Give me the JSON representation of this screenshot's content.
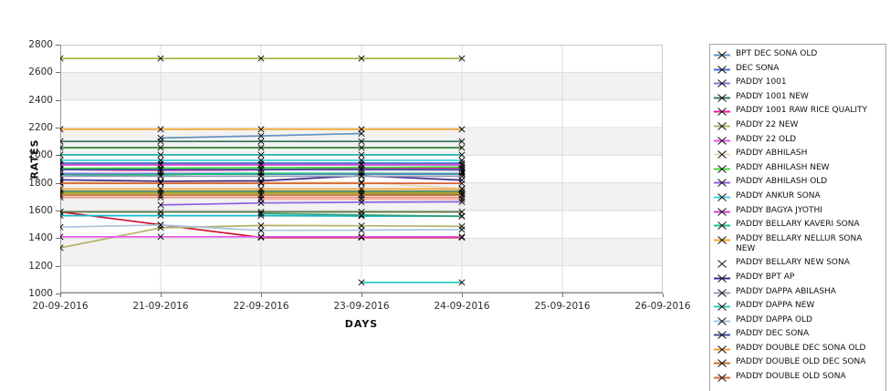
{
  "colors": {
    "band": "#f2f2f2",
    "grid": "#dcdcdc",
    "plot_border": "#c9c9c9",
    "axis_line": "#8a8a8a",
    "marker": "#000000",
    "legend_border": "#a6a6a6",
    "background": "#ffffff"
  },
  "axes": {
    "ylabel": "RATES",
    "xlabel": "DAYS"
  },
  "chart_data": {
    "type": "line",
    "title": "",
    "xlabel": "DAYS",
    "ylabel": "RATES",
    "x_categories": [
      "20-09-2016",
      "21-09-2016",
      "22-09-2016",
      "23-09-2016",
      "24-09-2016",
      "25-09-2016",
      "26-09-2016"
    ],
    "ylim": [
      1000,
      2800
    ],
    "yticks": [
      1000,
      1200,
      1400,
      1600,
      1800,
      2000,
      2200,
      2400,
      2600,
      2800
    ],
    "grid": true,
    "band_fill_ranges": [
      [
        2400,
        2600
      ],
      [
        2000,
        2200
      ],
      [
        1600,
        1800
      ],
      [
        1200,
        1400
      ]
    ],
    "legend_position": "right",
    "marker": "x",
    "series": [
      {
        "name": "BPT DEC SONA OLD",
        "color": "#6593bd",
        "values": [
          null,
          2125,
          2140,
          2157,
          null,
          null,
          null
        ]
      },
      {
        "name": "DEC SONA",
        "color": "#4169cd",
        "values": [
          1943,
          1943,
          1943,
          1943,
          1943,
          null,
          null
        ]
      },
      {
        "name": "PADDY 1001",
        "color": "#7a7ad2",
        "values": [
          1868,
          1868,
          1868,
          1868,
          1868,
          null,
          null
        ]
      },
      {
        "name": "PADDY 1001 NEW",
        "color": "#33715a",
        "values": [
          2100,
          2100,
          2100,
          2100,
          2100,
          null,
          null
        ]
      },
      {
        "name": "PADDY 1001 RAW RICE QUALITY",
        "color": "#ed17a1",
        "values": [
          1880,
          1888,
          1895,
          1905,
          1910,
          null,
          null
        ]
      },
      {
        "name": "PADDY 22 NEW",
        "color": "#b3b167",
        "values": [
          1330,
          1475,
          1492,
          1490,
          1485,
          null,
          null
        ]
      },
      {
        "name": "PADDY 22 OLD",
        "color": "#e753e7",
        "values": [
          1410,
          1410,
          1410,
          1410,
          1410,
          null,
          null
        ]
      },
      {
        "name": "PADDY ABHILASH",
        "color": "#ecd9bb",
        "values": [
          1805,
          1805,
          1805,
          1805,
          1758,
          null,
          null
        ]
      },
      {
        "name": "PADDY ABHILASH NEW",
        "color": "#3ddb3d",
        "values": [
          1905,
          1908,
          1910,
          1912,
          1915,
          null,
          null
        ]
      },
      {
        "name": "PADDY ABHILASH OLD",
        "color": "#8f5fe0",
        "values": [
          null,
          1640,
          1655,
          1660,
          1663,
          null,
          null
        ]
      },
      {
        "name": "PADDY ANKUR SONA",
        "color": "#3fd0e0",
        "values": [
          1963,
          1963,
          1963,
          1963,
          1963,
          null,
          null
        ]
      },
      {
        "name": "PADDY BAGYA JYOTHI",
        "color": "#cf43cf",
        "values": [
          1930,
          1930,
          1930,
          1930,
          1930,
          null,
          null
        ]
      },
      {
        "name": "PADDY BELLARY KAVERI SONA",
        "color": "#17c177",
        "values": [
          1850,
          1860,
          1870,
          1875,
          1877,
          null,
          null
        ]
      },
      {
        "name": "PADDY BELLARY NELLUR SONA NEW",
        "color": "#f5a629",
        "values": [
          2188,
          2188,
          2188,
          2188,
          2188,
          null,
          null
        ]
      },
      {
        "name": "PADDY BELLARY NEW SONA",
        "color": "#ffffff",
        "values": [
          1880,
          1880,
          1880,
          1880,
          1880,
          null,
          null
        ]
      },
      {
        "name": "PADDY BPT AP",
        "color": "#3d2b8f",
        "values": [
          1822,
          1812,
          1815,
          1852,
          1820,
          null,
          null
        ]
      },
      {
        "name": "PADDY DAPPA ABILASHA",
        "color": "#9a9ab8",
        "values": [
          1848,
          1848,
          1848,
          1848,
          1848,
          null,
          null
        ]
      },
      {
        "name": "PADDY DAPPA NEW",
        "color": "#2cc8be",
        "values": [
          null,
          null,
          null,
          1080,
          1080,
          null,
          null
        ]
      },
      {
        "name": "PADDY DAPPA OLD",
        "color": "#aac4dd",
        "values": [
          1480,
          1495,
          1456,
          1458,
          1462,
          null,
          null
        ]
      },
      {
        "name": "PADDY DEC SONA",
        "color": "#3a4a8f",
        "values": [
          1897,
          1897,
          1897,
          1897,
          1897,
          null,
          null
        ]
      },
      {
        "name": "PADDY DOUBLE DEC SONA OLD",
        "color": "#f0a030",
        "values": [
          1756,
          1756,
          1756,
          1756,
          1756,
          null,
          null
        ]
      },
      {
        "name": "PADDY DOUBLE OLD DEC SONA",
        "color": "#c2702e",
        "values": [
          1712,
          1712,
          1712,
          1712,
          1712,
          null,
          null
        ]
      },
      {
        "name": "PADDY DOUBLE OLD SONA",
        "color": "#da6535",
        "values": [
          1797,
          1797,
          1797,
          1797,
          1797,
          null,
          null
        ]
      }
    ],
    "legend_cut_off_series": [
      {
        "color": "#96b83d",
        "values": [
          2700,
          2700,
          2700,
          2700,
          2700,
          null,
          null
        ]
      },
      {
        "color": "#2c8032",
        "values": [
          2055,
          2055,
          2055,
          2055,
          2055,
          null,
          null
        ]
      },
      {
        "color": "#26b3a4",
        "values": [
          2003,
          2003,
          2003,
          2003,
          2003,
          null,
          null
        ]
      },
      {
        "color": "#9b30cc",
        "values": [
          1865,
          1870,
          1875,
          1880,
          1883,
          null,
          null
        ]
      },
      {
        "color": "#2aa893",
        "values": [
          1863,
          1863,
          1863,
          1863,
          1863,
          null,
          null
        ]
      },
      {
        "color": "#3f7a3f",
        "values": [
          1740,
          1740,
          1740,
          1740,
          1740,
          null,
          null
        ]
      },
      {
        "color": "#a0a018",
        "values": [
          1726,
          1726,
          1726,
          1726,
          1726,
          null,
          null
        ]
      },
      {
        "color": "#f98d7e",
        "values": [
          1695,
          1695,
          1695,
          1695,
          1695,
          null,
          null
        ]
      },
      {
        "color": "#fbb0a0",
        "values": [
          null,
          null,
          1681,
          1681,
          1681,
          null,
          null
        ]
      },
      {
        "color": "#cc1430",
        "values": [
          1590,
          1497,
          1405,
          1405,
          1405,
          null,
          null
        ]
      },
      {
        "color": "#57703a",
        "values": [
          1590,
          1590,
          1590,
          1590,
          1590,
          null,
          null
        ]
      },
      {
        "color": "#18b9c9",
        "values": [
          1563,
          1563,
          1563,
          1560,
          1560,
          null,
          null
        ]
      },
      {
        "color": "#2e9e78",
        "values": [
          null,
          null,
          1578,
          1568,
          1558,
          null,
          null
        ]
      },
      {
        "color": "#444a52",
        "values": [
          null,
          null,
          null,
          1714,
          1714,
          null,
          null
        ]
      }
    ]
  }
}
